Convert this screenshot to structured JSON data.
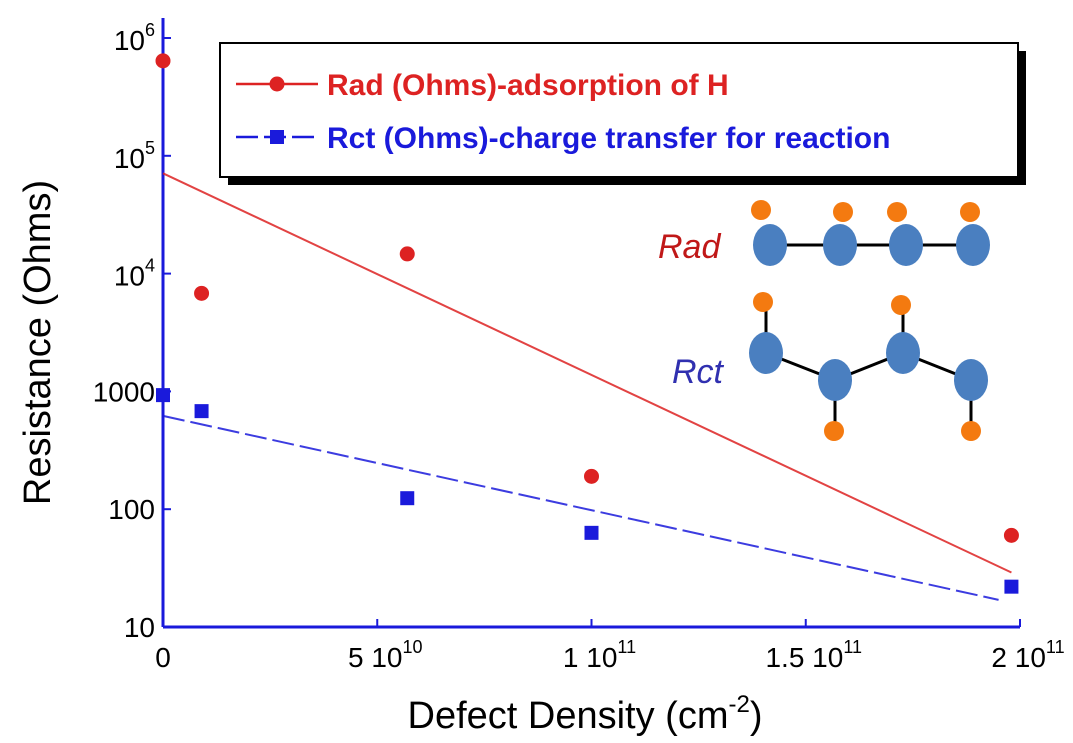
{
  "chart_data": {
    "type": "scatter",
    "y_label": "Resistance (Ohms)",
    "x_label": {
      "text": "Defect Density (cm",
      "sup": "-2",
      "tail": ")"
    },
    "xlim": [
      0,
      200000000000
    ],
    "ylim": [
      10,
      1000000
    ],
    "y_log": true,
    "xticks": [
      0,
      {
        "value": 50000000000,
        "label": "5 10",
        "sup": "10"
      },
      {
        "value": 100000000000,
        "label": "1 10",
        "sup": "11"
      },
      {
        "value": 150000000000,
        "label": "1.5 10",
        "sup": "11"
      },
      {
        "value": 200000000000,
        "label": "2 10",
        "sup": "11"
      }
    ],
    "yticks": [
      10,
      100,
      1000,
      {
        "value": 10000,
        "label": "10",
        "sup": "4"
      },
      {
        "value": 100000,
        "label": "10",
        "sup": "5"
      },
      {
        "value": 1000000,
        "label": "10",
        "sup": "6"
      }
    ],
    "series": [
      {
        "name": "Rad (Ohms)-adsorption of H",
        "color": "#dd2222",
        "marker": "circle",
        "line_style": "solid",
        "x": [
          0,
          9000000000,
          57000000000,
          100000000000,
          198000000000
        ],
        "values": [
          640000,
          6800,
          14700,
          190,
          60
        ],
        "fit": {
          "x": [
            0,
            198000000000
          ],
          "values": [
            71000,
            29
          ]
        }
      },
      {
        "name": "Rct (Ohms)-charge transfer for reaction",
        "color": "#1a1adb",
        "marker": "square",
        "line_style": "dashed",
        "x": [
          0,
          9000000000,
          57000000000,
          100000000000,
          198000000000
        ],
        "values": [
          930,
          680,
          124,
          63,
          22
        ],
        "fit": {
          "x": [
            0,
            195000000000
          ],
          "values": [
            620,
            17
          ]
        }
      }
    ],
    "inset": {
      "labels": [
        "Rad",
        "Rct"
      ]
    }
  }
}
